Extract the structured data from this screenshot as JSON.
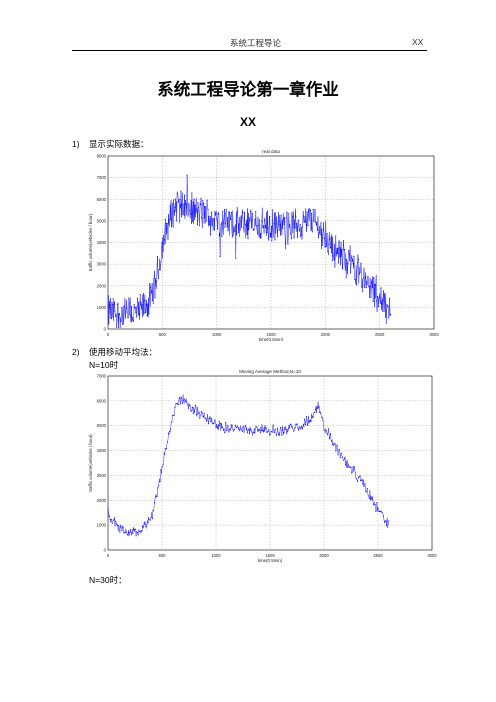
{
  "header": {
    "left": "系统工程导论",
    "right": "XX"
  },
  "document": {
    "title": "系统工程导论第一章作业",
    "author": "XX"
  },
  "sections": [
    {
      "number": "1)",
      "label": "显示实际数据："
    },
    {
      "number": "2)",
      "label": "使用移动平均法："
    }
  ],
  "sublabels": [
    {
      "latin": "N=10",
      "cjk": "时"
    },
    {
      "latin": "N=30",
      "cjk": "时："
    }
  ],
  "chart_data": [
    {
      "type": "line",
      "title": "real data",
      "xlabel": "time(0.5min)",
      "ylabel": "traffic volume(vehicles / hour)",
      "xlim": [
        0,
        3000
      ],
      "ylim": [
        0,
        8000
      ],
      "xticks": [
        "0",
        "500",
        "1000",
        "1500",
        "2000",
        "2500",
        "3000"
      ],
      "yticks": [
        "0",
        "1000",
        "2000",
        "3000",
        "4000",
        "5000",
        "6000",
        "7000",
        "8000"
      ],
      "grid": true,
      "color": "#0000ee",
      "profile_x": [
        0,
        100,
        200,
        300,
        400,
        450,
        500,
        550,
        600,
        650,
        700,
        800,
        900,
        1000,
        1100,
        1200,
        1300,
        1400,
        1500,
        1600,
        1700,
        1800,
        1850,
        1900,
        2000,
        2100,
        2200,
        2300,
        2400,
        2500,
        2600
      ],
      "profile_y": [
        800,
        700,
        700,
        800,
        1400,
        2400,
        3800,
        4800,
        5500,
        6000,
        5700,
        5400,
        5300,
        5000,
        4900,
        4800,
        4900,
        4800,
        4700,
        4700,
        4800,
        4900,
        5100,
        5000,
        4200,
        3600,
        3200,
        2800,
        2000,
        1400,
        700
      ],
      "noise": 900
    },
    {
      "type": "line",
      "title": "Moving Average Method,N=10",
      "xlabel": "time(0.5min)",
      "ylabel": "traffic volume(vehicles / hour)",
      "xlim": [
        0,
        3000
      ],
      "ylim": [
        0,
        7000
      ],
      "xticks": [
        "0",
        "500",
        "1000",
        "1500",
        "2000",
        "2500",
        "3000"
      ],
      "yticks": [
        "0",
        "1000",
        "2000",
        "3000",
        "4000",
        "5000",
        "6000",
        "7000"
      ],
      "grid": true,
      "color": "#0000ee",
      "profile_x": [
        0,
        50,
        100,
        200,
        300,
        400,
        450,
        500,
        550,
        600,
        650,
        700,
        750,
        800,
        900,
        1000,
        1100,
        1200,
        1300,
        1400,
        1500,
        1600,
        1700,
        1800,
        1900,
        1950,
        2000,
        2100,
        2200,
        2300,
        2400,
        2500,
        2600
      ],
      "profile_y": [
        1500,
        1100,
        900,
        700,
        800,
        1300,
        2200,
        3300,
        4400,
        5400,
        5900,
        6100,
        5800,
        5600,
        5400,
        5100,
        4900,
        4900,
        4800,
        4900,
        4800,
        4800,
        4900,
        5000,
        5400,
        5800,
        5000,
        4200,
        3600,
        3000,
        2400,
        1600,
        1000
      ],
      "noise": 250
    }
  ]
}
